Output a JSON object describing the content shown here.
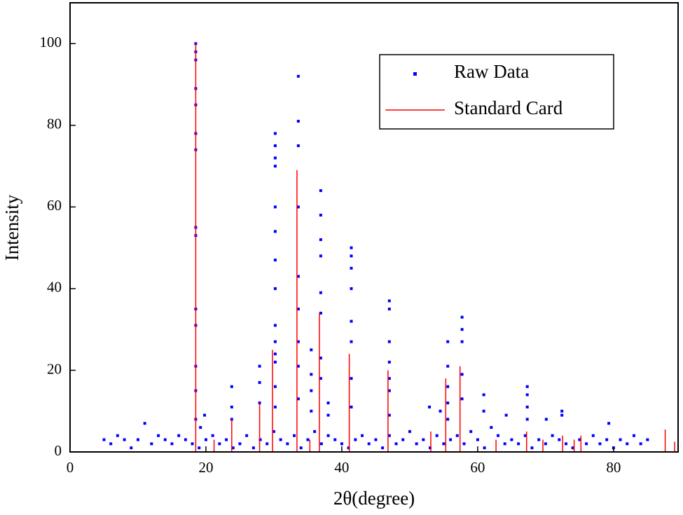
{
  "chart_data": {
    "type": "scatter",
    "x_label": "2θ(degree)",
    "y_label": "Intensity",
    "xlim": [
      0,
      89.5
    ],
    "ylim": [
      0,
      110
    ],
    "xticks": [
      0,
      20,
      40,
      60,
      80
    ],
    "yticks": [
      0,
      20,
      40,
      60,
      80,
      100
    ],
    "legend": "upper right",
    "series": [
      {
        "name": "Raw Data",
        "type": "scatter",
        "color": "#0000ff",
        "x": [
          5,
          6,
          7,
          8,
          9,
          10,
          11,
          12,
          13,
          14,
          15,
          16,
          17,
          18,
          19,
          20,
          21,
          22,
          23,
          24,
          25,
          26,
          27,
          28,
          29,
          30,
          31,
          32,
          33,
          34,
          35,
          36,
          37,
          38,
          39,
          40,
          41,
          42,
          43,
          44,
          45,
          46,
          47,
          48,
          49,
          50,
          51,
          52,
          53,
          54,
          55,
          56,
          57,
          58,
          59,
          60,
          61,
          62,
          63,
          64,
          65,
          66,
          67,
          68,
          69,
          70,
          71,
          72,
          73,
          74,
          75,
          76,
          77,
          78,
          79,
          80,
          81,
          82,
          83,
          84,
          85,
          18.5,
          18.5,
          18.5,
          18.5,
          18.5,
          18.5,
          18.5,
          18.5,
          18.5,
          18.5,
          18.5,
          18.5,
          18.5,
          18.5,
          19.2,
          19.8,
          23.8,
          23.8,
          23.8,
          27.9,
          27.9,
          27.9,
          30.2,
          30.2,
          30.2,
          30.2,
          30.2,
          30.2,
          30.2,
          30.2,
          30.2,
          30.2,
          30.2,
          30.2,
          30.2,
          30.2,
          33.6,
          33.6,
          33.6,
          33.6,
          33.6,
          33.6,
          33.6,
          33.6,
          33.6,
          35.5,
          35.5,
          35.5,
          35.5,
          36.9,
          36.9,
          36.9,
          36.9,
          36.9,
          36.9,
          36.9,
          36.9,
          38.0,
          38.0,
          41.4,
          41.4,
          41.4,
          41.4,
          41.4,
          41.4,
          41.4,
          41.4,
          47.0,
          47.0,
          47.0,
          47.0,
          47.0,
          47.0,
          47.0,
          52.9,
          54.5,
          55.6,
          55.6,
          55.6,
          55.6,
          55.6,
          57.7,
          57.7,
          57.7,
          57.7,
          57.7,
          60.9,
          60.9,
          64.2,
          67.3,
          67.3,
          67.3,
          67.3,
          70.1,
          72.4,
          72.4,
          79.3
        ],
        "values": [
          3,
          2,
          4,
          3,
          1,
          3,
          7,
          2,
          4,
          3,
          2,
          4,
          3,
          2,
          1,
          3,
          4,
          2,
          3,
          1,
          2,
          4,
          1,
          3,
          2,
          5,
          3,
          2,
          4,
          1,
          3,
          5,
          2,
          4,
          3,
          2,
          1,
          3,
          4,
          2,
          3,
          1,
          4,
          2,
          3,
          5,
          2,
          3,
          1,
          4,
          2,
          3,
          4,
          2,
          5,
          3,
          1,
          6,
          4,
          2,
          3,
          2,
          4,
          1,
          3,
          2,
          4,
          3,
          2,
          1,
          3,
          2,
          4,
          2,
          3,
          1,
          3,
          2,
          4,
          2,
          3,
          100,
          98,
          96,
          89,
          85,
          78,
          74,
          55,
          53,
          35,
          31,
          21,
          15,
          8,
          6,
          9,
          16,
          11,
          8,
          21,
          17,
          12,
          78,
          75,
          72,
          70,
          60,
          54,
          47,
          40,
          31,
          27,
          24,
          22,
          16,
          11,
          92,
          81,
          75,
          60,
          43,
          35,
          27,
          21,
          13,
          25,
          19,
          15,
          10,
          64,
          58,
          52,
          48,
          39,
          34,
          23,
          18,
          12,
          9,
          50,
          48,
          45,
          40,
          32,
          27,
          18,
          11,
          37,
          35,
          27,
          22,
          18,
          15,
          9,
          11,
          10,
          27,
          21,
          16,
          12,
          8,
          33,
          30,
          27,
          19,
          13,
          14,
          10,
          9,
          16,
          14,
          11,
          8,
          8,
          10,
          9,
          7
        ]
      },
      {
        "name": "Standard Card",
        "type": "stem",
        "color": "#ff0000",
        "x": [
          18.5,
          21.2,
          23.8,
          27.9,
          29.8,
          33.4,
          35.3,
          36.7,
          41.1,
          46.8,
          53.1,
          55.3,
          57.4,
          62.7,
          67.2,
          69.6,
          72.5,
          74.2,
          75.2,
          87.6,
          89.0
        ],
        "values": [
          100,
          3,
          8,
          12,
          25,
          69,
          3,
          34,
          24,
          20,
          5,
          18,
          21,
          3,
          5,
          3,
          4,
          3,
          4,
          5.5,
          2.5
        ]
      }
    ]
  }
}
